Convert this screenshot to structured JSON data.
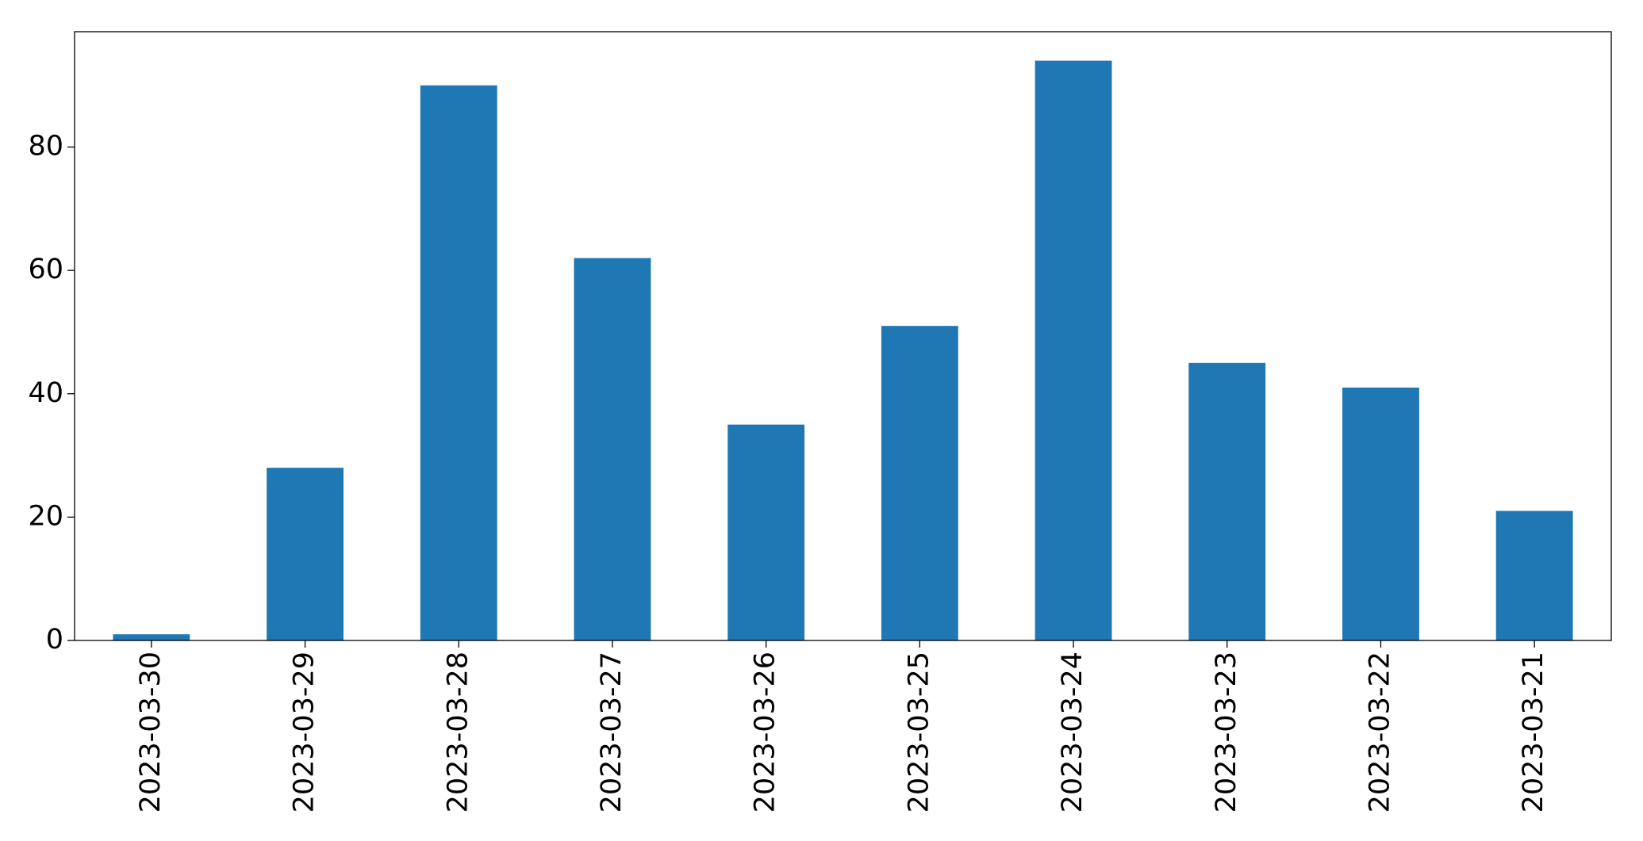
{
  "chart_data": {
    "type": "bar",
    "categories": [
      "2023-03-30",
      "2023-03-29",
      "2023-03-28",
      "2023-03-27",
      "2023-03-26",
      "2023-03-25",
      "2023-03-24",
      "2023-03-23",
      "2023-03-22",
      "2023-03-21"
    ],
    "values": [
      1,
      28,
      90,
      62,
      35,
      51,
      94,
      45,
      41,
      21
    ],
    "color": "#1f77b4",
    "ylim": [
      0,
      98.7
    ],
    "yticks": [
      0,
      20,
      40,
      60,
      80
    ],
    "grid": false
  }
}
